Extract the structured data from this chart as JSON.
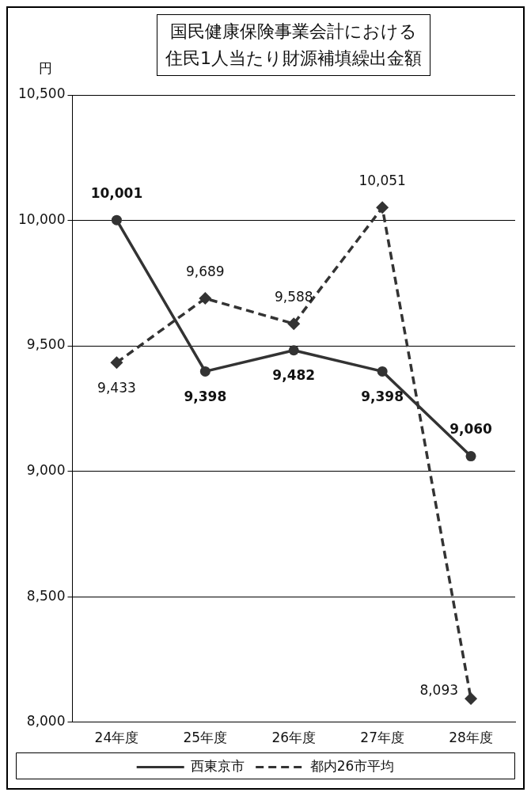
{
  "chart_data": {
    "type": "line",
    "title": "国民健康保険事業会計における",
    "subtitle": "住民1人当たり財源補填繰出金額",
    "ylabel": "円",
    "categories": [
      "24年度",
      "25年度",
      "26年度",
      "27年度",
      "28年度"
    ],
    "series": [
      {
        "name": "西東京市",
        "color": "#333333",
        "values": [
          10001,
          9398,
          9482,
          9398,
          9060
        ],
        "value_labels": [
          "10,001",
          "9,398",
          "9,482",
          "9,398",
          "9,060"
        ],
        "marker": "circle",
        "line_style": "solid"
      },
      {
        "name": "都内26市平均",
        "color": "#333333",
        "values": [
          9433,
          9689,
          9588,
          10051,
          8093
        ],
        "value_labels": [
          "9,433",
          "9,689",
          "9,588",
          "10,051",
          "8,093"
        ],
        "marker": "diamond",
        "line_style": "dashed"
      }
    ],
    "ylim": [
      8000,
      10500
    ],
    "yticks": [
      {
        "value": 8000,
        "label": "8,000"
      },
      {
        "value": 8500,
        "label": "8,500"
      },
      {
        "value": 9000,
        "label": "9,000"
      },
      {
        "value": 9500,
        "label": "9,500"
      },
      {
        "value": 10000,
        "label": "10,000"
      },
      {
        "value": 10500,
        "label": "10,500"
      }
    ],
    "grid": "y",
    "legend": "bottom"
  }
}
